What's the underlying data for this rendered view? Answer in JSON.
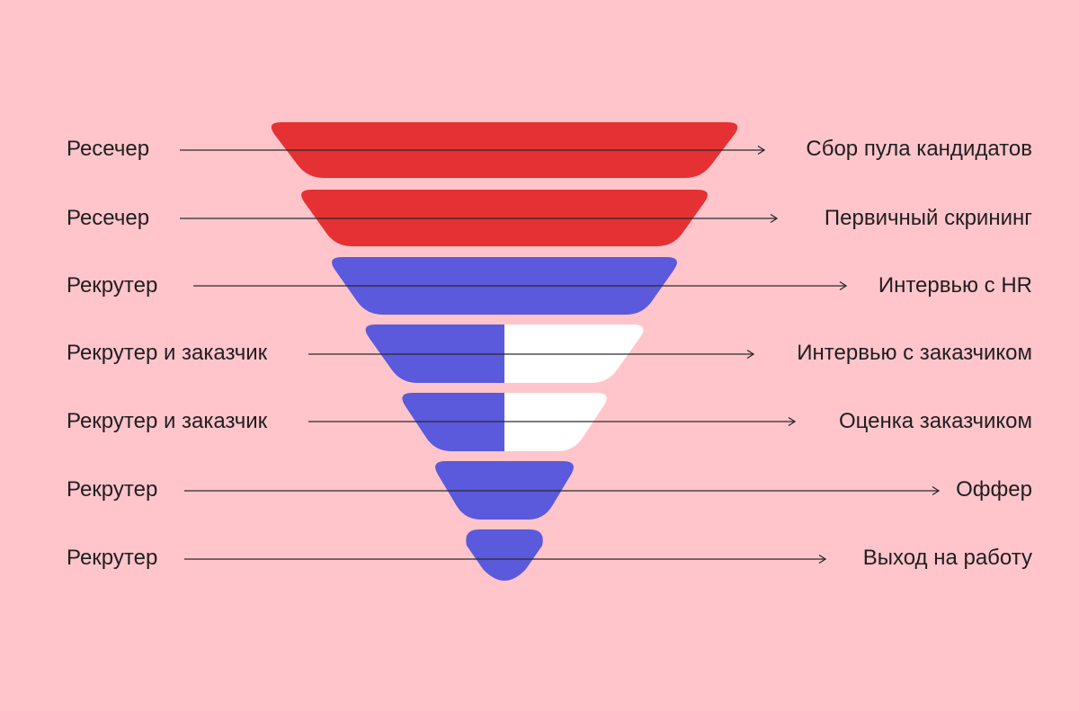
{
  "colors": {
    "background": "#FFC5CB",
    "red": "#E53133",
    "blue": "#5B59DC",
    "white": "#FFFFFF",
    "line": "#2a2a2a"
  },
  "stages": [
    {
      "role": "Ресечер",
      "step": "Сбор пула кандидатов",
      "fill": "red"
    },
    {
      "role": "Ресечер",
      "step": "Первичный скрининг",
      "fill": "red"
    },
    {
      "role": "Рекрутер",
      "step": "Интервью с HR",
      "fill": "blue"
    },
    {
      "role": "Рекрутер и заказчик",
      "step": "Интервью с заказчиком",
      "fill": "split"
    },
    {
      "role": "Рекрутер и заказчик",
      "step": "Оценка заказчиком",
      "fill": "split"
    },
    {
      "role": "Рекрутер",
      "step": "Оффер",
      "fill": "blue"
    },
    {
      "role": "Рекрутер",
      "step": "Выход на работу",
      "fill": "blue"
    }
  ]
}
